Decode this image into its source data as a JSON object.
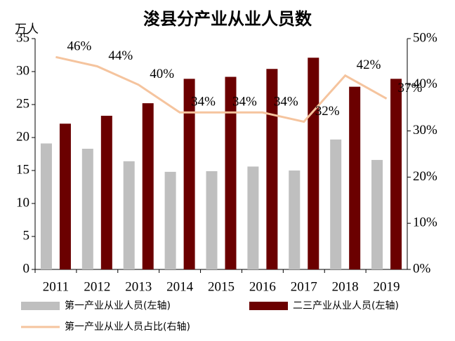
{
  "chart_data": {
    "type": "bar",
    "title": "浚县分产业从业人员数",
    "ylabel": "万人",
    "categories": [
      "2011",
      "2012",
      "2013",
      "2014",
      "2015",
      "2016",
      "2017",
      "2018",
      "2019"
    ],
    "series": [
      {
        "name": "第一产业从业人员(左轴)",
        "type": "bar",
        "color": "#bfbfbf",
        "values": [
          19.1,
          18.3,
          16.4,
          14.8,
          14.9,
          15.6,
          15.0,
          19.7,
          16.6
        ]
      },
      {
        "name": "二三产业从业人员(左轴)",
        "type": "bar",
        "color": "#6b0000",
        "values": [
          22.1,
          23.3,
          25.2,
          28.9,
          29.2,
          30.4,
          32.1,
          27.7,
          28.9
        ]
      },
      {
        "name": "第一产业从业人员占比(右轴)",
        "type": "line",
        "axis": "y2",
        "color": "#f5c49e",
        "values": [
          46,
          44,
          40,
          34,
          34,
          34,
          32,
          42,
          37
        ],
        "value_labels": [
          "46%",
          "44%",
          "40%",
          "34%",
          "34%",
          "34%",
          "32%",
          "42%",
          "37%"
        ]
      }
    ],
    "ylim": [
      0,
      35
    ],
    "yticks": [
      0,
      5,
      10,
      15,
      20,
      25,
      30,
      35
    ],
    "y2lim": [
      0,
      50
    ],
    "y2ticks": [
      {
        "value": 0,
        "label": "0%"
      },
      {
        "value": 10,
        "label": "10%"
      },
      {
        "value": 20,
        "label": "20%"
      },
      {
        "value": 30,
        "label": "30%"
      },
      {
        "value": 40,
        "label": "40%"
      },
      {
        "value": 50,
        "label": "50%"
      }
    ],
    "grid": false
  }
}
